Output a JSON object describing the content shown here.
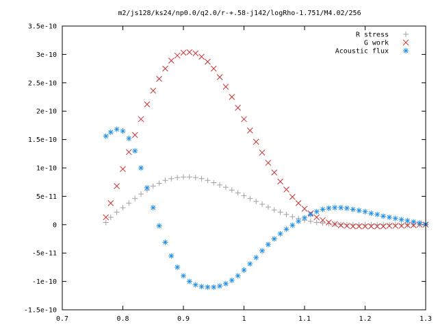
{
  "chart_data": {
    "type": "scatter",
    "title": "m2/js128/ks24/np0.0/q2.0/r-+.58-j142/logRho-1.751/M4.02/256",
    "xlabel": "",
    "ylabel": "",
    "xlim": [
      0.7,
      1.3
    ],
    "ylim": [
      -1.5e-10,
      3.5e-10
    ],
    "grid": false,
    "legend_position": "top-right",
    "x_ticks": [
      {
        "value": 0.7,
        "label": "0.7"
      },
      {
        "value": 0.8,
        "label": "0.8"
      },
      {
        "value": 0.9,
        "label": "0.9"
      },
      {
        "value": 1.0,
        "label": "1"
      },
      {
        "value": 1.1,
        "label": "1.1"
      },
      {
        "value": 1.2,
        "label": "1.2"
      },
      {
        "value": 1.3,
        "label": "1.3"
      }
    ],
    "y_ticks": [
      {
        "value": -1.5e-10,
        "label": "-1.5e-10"
      },
      {
        "value": -1e-10,
        "label": "-1e-10"
      },
      {
        "value": -5e-11,
        "label": "-5e-11"
      },
      {
        "value": 0,
        "label": "0"
      },
      {
        "value": 5e-11,
        "label": "5e-11"
      },
      {
        "value": 1e-10,
        "label": "1e-10"
      },
      {
        "value": 1.5e-10,
        "label": "1.5e-10"
      },
      {
        "value": 2e-10,
        "label": "2e-10"
      },
      {
        "value": 2.5e-10,
        "label": "2.5e-10"
      },
      {
        "value": 3e-10,
        "label": "3e-10"
      },
      {
        "value": 3.5e-10,
        "label": "3.5e-10"
      }
    ],
    "series": [
      {
        "name": "R stress",
        "marker": "plus",
        "color": "#a0a0a0",
        "x": [
          0.772,
          0.78,
          0.79,
          0.8,
          0.81,
          0.82,
          0.83,
          0.84,
          0.85,
          0.86,
          0.87,
          0.88,
          0.89,
          0.9,
          0.91,
          0.92,
          0.93,
          0.94,
          0.95,
          0.96,
          0.97,
          0.98,
          0.99,
          1.0,
          1.01,
          1.02,
          1.03,
          1.04,
          1.05,
          1.06,
          1.07,
          1.08,
          1.09,
          1.1,
          1.11,
          1.12,
          1.13,
          1.14,
          1.15,
          1.16,
          1.17,
          1.18,
          1.19,
          1.2,
          1.21,
          1.22,
          1.23,
          1.24,
          1.25,
          1.26,
          1.27,
          1.28,
          1.29,
          1.3
        ],
        "y": [
          4e-12,
          1.3e-11,
          2.2e-11,
          3e-11,
          3.8e-11,
          4.6e-11,
          5.4e-11,
          6.1e-11,
          6.8e-11,
          7.3e-11,
          7.8e-11,
          8.1e-11,
          8.3e-11,
          8.4e-11,
          8.4e-11,
          8.3e-11,
          8.1e-11,
          7.8e-11,
          7.4e-11,
          7e-11,
          6.6e-11,
          6.1e-11,
          5.6e-11,
          5.1e-11,
          4.6e-11,
          4.1e-11,
          3.6e-11,
          3.1e-11,
          2.6e-11,
          2.2e-11,
          1.8e-11,
          1.4e-11,
          1.1e-11,
          8e-12,
          6e-12,
          4e-12,
          3e-12,
          2e-12,
          1e-12,
          5e-13,
          0.0,
          0.0,
          0.0,
          0.0,
          0.0,
          0.0,
          0.0,
          0.0,
          0.0,
          0.0,
          0.0,
          0.0,
          0.0,
          0.0
        ]
      },
      {
        "name": "G work",
        "marker": "cross",
        "color": "#cc3333",
        "x": [
          0.772,
          0.78,
          0.79,
          0.8,
          0.81,
          0.82,
          0.83,
          0.84,
          0.85,
          0.86,
          0.87,
          0.88,
          0.89,
          0.9,
          0.91,
          0.92,
          0.93,
          0.94,
          0.95,
          0.96,
          0.97,
          0.98,
          0.99,
          1.0,
          1.01,
          1.02,
          1.03,
          1.04,
          1.05,
          1.06,
          1.07,
          1.08,
          1.09,
          1.1,
          1.11,
          1.12,
          1.13,
          1.14,
          1.15,
          1.16,
          1.17,
          1.18,
          1.19,
          1.2,
          1.21,
          1.22,
          1.23,
          1.24,
          1.25,
          1.26,
          1.27,
          1.28,
          1.29,
          1.3
        ],
        "y": [
          1.3e-11,
          3.8e-11,
          6.8e-11,
          9.8e-11,
          1.28e-10,
          1.58e-10,
          1.86e-10,
          2.12e-10,
          2.36e-10,
          2.57e-10,
          2.75e-10,
          2.89e-10,
          2.98e-10,
          3.03e-10,
          3.04e-10,
          3.02e-10,
          2.96e-10,
          2.87e-10,
          2.75e-10,
          2.6e-10,
          2.43e-10,
          2.25e-10,
          2.06e-10,
          1.86e-10,
          1.66e-10,
          1.46e-10,
          1.27e-10,
          1.09e-10,
          9.2e-11,
          7.6e-11,
          6.2e-11,
          4.9e-11,
          3.8e-11,
          2.8e-11,
          2e-11,
          1.3e-11,
          8e-12,
          4e-12,
          1e-12,
          -1e-12,
          -2e-12,
          -3e-12,
          -3e-12,
          -3e-12,
          -3e-12,
          -3e-12,
          -3e-12,
          -2e-12,
          -2e-12,
          -2e-12,
          -1e-12,
          -1e-12,
          0.0,
          0.0
        ]
      },
      {
        "name": "Acoustic flux",
        "marker": "star",
        "color": "#1f8fe8",
        "x": [
          0.772,
          0.78,
          0.79,
          0.8,
          0.81,
          0.82,
          0.83,
          0.84,
          0.85,
          0.86,
          0.87,
          0.88,
          0.89,
          0.9,
          0.91,
          0.92,
          0.93,
          0.94,
          0.95,
          0.96,
          0.97,
          0.98,
          0.99,
          1.0,
          1.01,
          1.02,
          1.03,
          1.04,
          1.05,
          1.06,
          1.07,
          1.08,
          1.09,
          1.1,
          1.11,
          1.12,
          1.13,
          1.14,
          1.15,
          1.16,
          1.17,
          1.18,
          1.19,
          1.2,
          1.21,
          1.22,
          1.23,
          1.24,
          1.25,
          1.26,
          1.27,
          1.28,
          1.29,
          1.3
        ],
        "y": [
          1.56e-10,
          1.63e-10,
          1.68e-10,
          1.65e-10,
          1.52e-10,
          1.3e-10,
          1e-10,
          6.5e-11,
          3e-11,
          -2e-12,
          -3.1e-11,
          -5.5e-11,
          -7.5e-11,
          -9e-11,
          -1e-10,
          -1.06e-10,
          -1.09e-10,
          -1.1e-10,
          -1.1e-10,
          -1.08e-10,
          -1.04e-10,
          -9.8e-11,
          -9e-11,
          -8e-11,
          -6.9e-11,
          -5.8e-11,
          -4.6e-11,
          -3.5e-11,
          -2.5e-11,
          -1.6e-11,
          -8e-12,
          -1e-12,
          6e-12,
          1.2e-11,
          1.8e-11,
          2.3e-11,
          2.7e-11,
          2.9e-11,
          3e-11,
          3e-11,
          2.9e-11,
          2.7e-11,
          2.5e-11,
          2.3e-11,
          2e-11,
          1.8e-11,
          1.5e-11,
          1.3e-11,
          1.1e-11,
          9e-12,
          7e-12,
          5e-12,
          3e-12,
          1e-12
        ]
      }
    ]
  }
}
